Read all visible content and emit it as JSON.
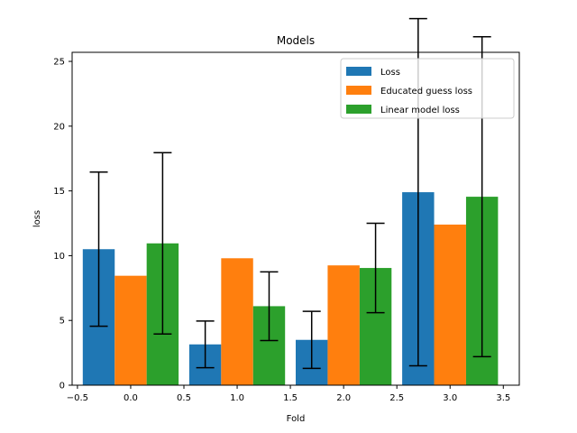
{
  "chart_data": {
    "type": "bar",
    "title": "Models",
    "xlabel": "Fold",
    "ylabel": "loss",
    "x": [
      0,
      1,
      2,
      3
    ],
    "xlim": [
      -0.55,
      3.65
    ],
    "ylim": [
      0,
      25.7
    ],
    "xticks": [
      -0.5,
      0.0,
      0.5,
      1.0,
      1.5,
      2.0,
      2.5,
      3.0,
      3.5
    ],
    "xtick_labels": [
      "−0.5",
      "0.0",
      "0.5",
      "1.0",
      "1.5",
      "2.0",
      "2.5",
      "3.0",
      "3.5"
    ],
    "yticks": [
      0,
      5,
      10,
      15,
      20,
      25
    ],
    "ytick_labels": [
      "0",
      "5",
      "10",
      "15",
      "20",
      "25"
    ],
    "grid": false,
    "legend_position": "top-right",
    "series": [
      {
        "name": "Loss",
        "color": "#1f77b4",
        "offset": -0.3,
        "values": [
          10.5,
          3.15,
          3.5,
          14.9
        ],
        "errors": [
          5.95,
          1.8,
          2.2,
          13.4
        ]
      },
      {
        "name": "Educated guess loss",
        "color": "#ff7f0e",
        "offset": 0.0,
        "values": [
          8.45,
          9.8,
          9.25,
          12.4
        ],
        "errors": null
      },
      {
        "name": "Linear model loss",
        "color": "#2ca02c",
        "offset": 0.3,
        "values": [
          10.95,
          6.1,
          9.05,
          14.55
        ],
        "errors": [
          7.0,
          2.65,
          3.45,
          12.35
        ]
      }
    ],
    "bar_width": 0.3
  }
}
